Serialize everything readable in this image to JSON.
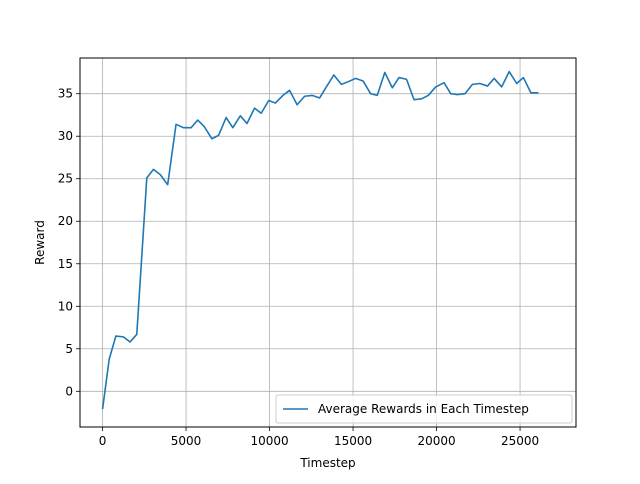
{
  "chart_data": {
    "type": "line",
    "title": "",
    "xlabel": "Timestep",
    "ylabel": "Reward",
    "xlim": [
      -1350,
      28350
    ],
    "ylim": [
      -4.2,
      39.2
    ],
    "xticks": [
      0,
      5000,
      10000,
      15000,
      20000,
      25000
    ],
    "yticks": [
      0,
      5,
      10,
      15,
      20,
      25,
      30,
      35
    ],
    "grid": true,
    "legend_position": "lower-right",
    "colors": {
      "series": "#1f77b4",
      "grid": "#b0b0b0",
      "axes": "#000000"
    },
    "series": [
      {
        "name": "Average Rewards in Each Timestep",
        "x": [
          0,
          400,
          800,
          1250,
          1650,
          2050,
          2650,
          3050,
          3450,
          3900,
          4400,
          4850,
          5300,
          5700,
          6100,
          6550,
          6950,
          7400,
          7800,
          8250,
          8650,
          9100,
          9500,
          9950,
          10350,
          10800,
          11200,
          11650,
          12100,
          12550,
          13000,
          13400,
          13850,
          14300,
          14700,
          15150,
          15600,
          16050,
          16450,
          16900,
          17350,
          17750,
          18200,
          18650,
          19100,
          19500,
          19950,
          20450,
          20850,
          21250,
          21700,
          22150,
          22600,
          23050,
          23450,
          23900,
          24350,
          24800,
          25200,
          25650,
          26100,
          26550,
          27000
        ],
        "y": [
          -2.1,
          3.8,
          6.5,
          6.4,
          5.8,
          6.7,
          25.1,
          26.1,
          25.5,
          24.3,
          31.4,
          31.0,
          31.0,
          31.9,
          31.1,
          29.7,
          30.1,
          32.2,
          31.0,
          32.4,
          31.5,
          33.3,
          32.7,
          34.2,
          33.9,
          34.8,
          35.4,
          33.7,
          34.7,
          34.8,
          34.5,
          35.8,
          37.2,
          36.1,
          36.4,
          36.8,
          36.5,
          35.0,
          34.8,
          37.5,
          35.7,
          36.9,
          36.7,
          34.3,
          34.4,
          34.8,
          35.8,
          36.3,
          35.0,
          34.9,
          35.0,
          36.1,
          36.2,
          35.9,
          36.8,
          35.8,
          37.6,
          36.2,
          36.9,
          35.1,
          35.1,
          null,
          null
        ]
      }
    ]
  }
}
